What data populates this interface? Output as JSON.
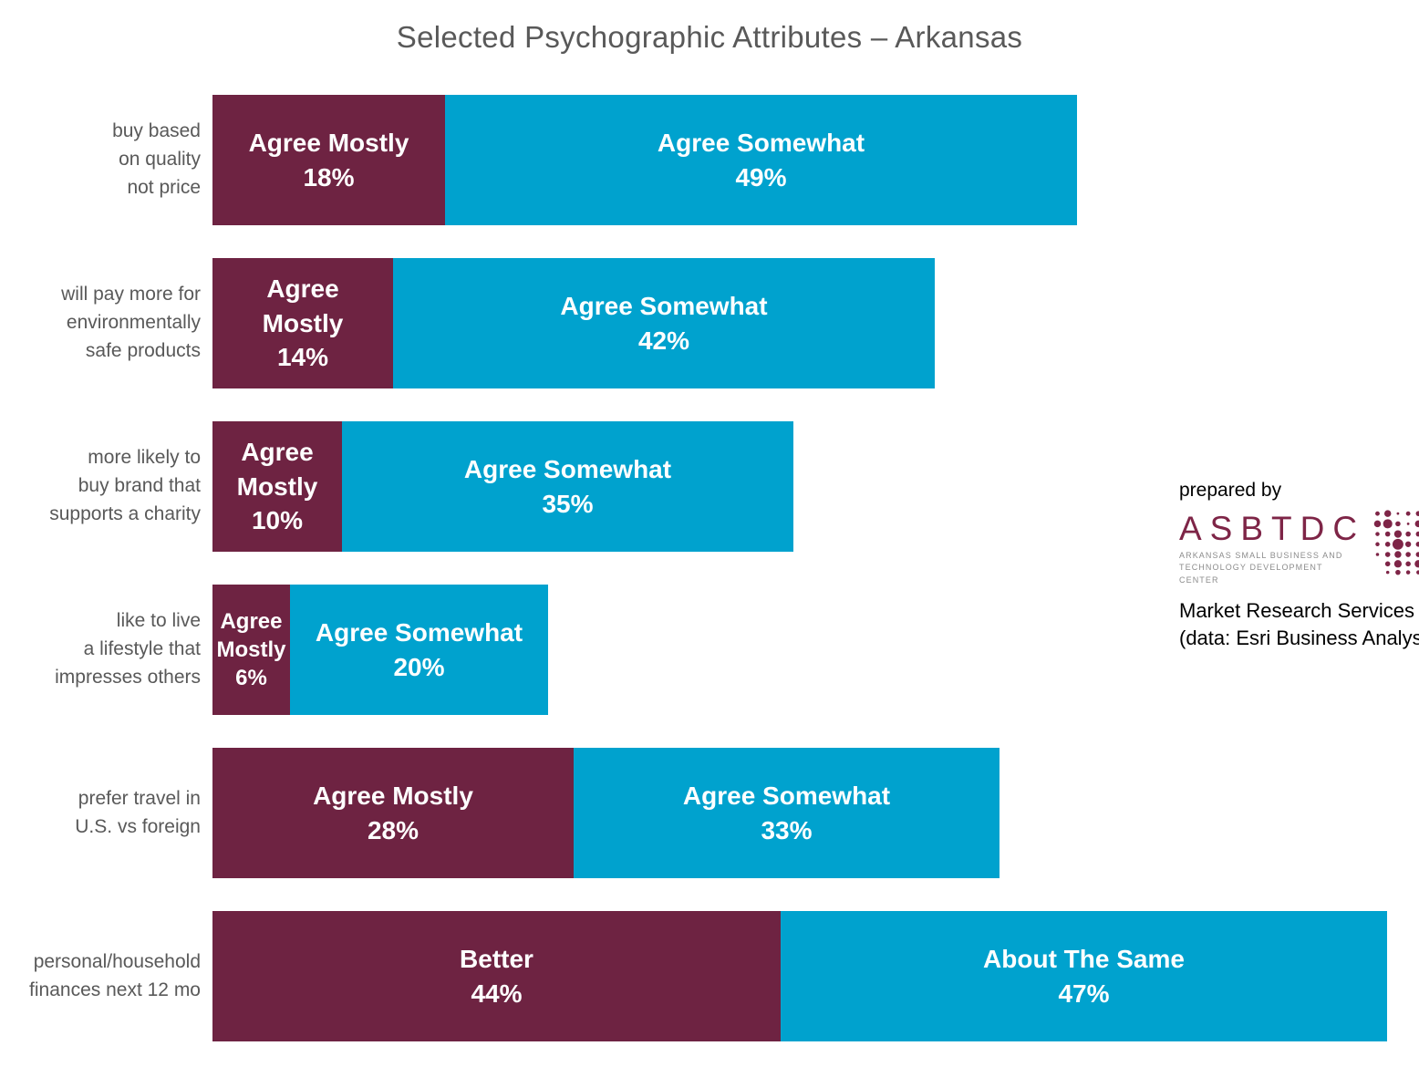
{
  "page": {
    "title": "Selected Psychographic Attributes – Arkansas"
  },
  "colors": {
    "agree_mostly": "#6E2342",
    "agree_somewhat": "#00A2CE",
    "title_gray": "#595959",
    "logo_maroon": "#7E2547"
  },
  "branding": {
    "prepared_by": "prepared by",
    "org_acronym": "ASBTDC",
    "org_tagline": "ARKANSAS SMALL BUSINESS AND\nTECHNOLOGY DEVELOPMENT CENTER",
    "logo_icon": "asbtdc-dots-logo",
    "service_line1": "Market Research Services",
    "service_line2": "(data: Esri Business Analyst)"
  },
  "chart_data": {
    "type": "bar",
    "orientation": "horizontal-stacked",
    "title": "Selected Psychographic Attributes – Arkansas",
    "unit": "%",
    "axis_hidden": true,
    "xlim": [
      0,
      93.5
    ],
    "series": [
      "Agree Mostly / Better",
      "Agree Somewhat / About The Same"
    ],
    "rows": [
      {
        "category": "buy based\non quality\nnot price",
        "segments": [
          {
            "name": "Agree Mostly",
            "value": 18
          },
          {
            "name": "Agree Somewhat",
            "value": 49
          }
        ]
      },
      {
        "category": "will pay more for\nenvironmentally\nsafe products",
        "segments": [
          {
            "name": "Agree Mostly",
            "value": 14
          },
          {
            "name": "Agree Somewhat",
            "value": 42
          }
        ]
      },
      {
        "category": "more likely to\nbuy brand that\nsupports a charity",
        "segments": [
          {
            "name": "Agree Mostly",
            "value": 10
          },
          {
            "name": "Agree Somewhat",
            "value": 35
          }
        ]
      },
      {
        "category": "like to live\na lifestyle that\nimpresses others",
        "segments": [
          {
            "name": "Agree Mostly",
            "value": 6
          },
          {
            "name": "Agree Somewhat",
            "value": 20
          }
        ]
      },
      {
        "category": "prefer travel in\nU.S. vs foreign",
        "segments": [
          {
            "name": "Agree Mostly",
            "value": 28
          },
          {
            "name": "Agree Somewhat",
            "value": 33
          }
        ]
      },
      {
        "category": "personal/household\nfinances next 12 mo",
        "segments": [
          {
            "name": "Better",
            "value": 44
          },
          {
            "name": "About The Same",
            "value": 47
          }
        ]
      }
    ]
  }
}
